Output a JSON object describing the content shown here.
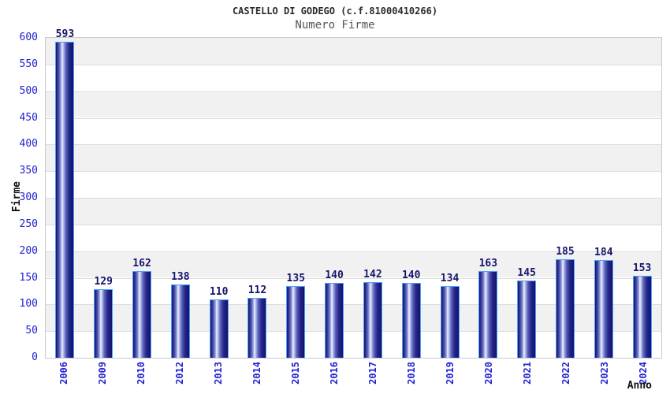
{
  "header": {
    "title": "CASTELLO DI GODEGO (c.f.81000410266)",
    "subtitle": "Numero Firme"
  },
  "chart_data": {
    "type": "bar",
    "title": "CASTELLO DI GODEGO (c.f.81000410266)",
    "subtitle": "Numero Firme",
    "categories": [
      "2006",
      "2009",
      "2010",
      "2012",
      "2013",
      "2014",
      "2015",
      "2016",
      "2017",
      "2018",
      "2019",
      "2020",
      "2021",
      "2022",
      "2023",
      "2024"
    ],
    "values": [
      593,
      129,
      162,
      138,
      110,
      112,
      135,
      140,
      142,
      140,
      134,
      163,
      145,
      185,
      184,
      153
    ],
    "xlabel": "Anno",
    "ylabel": "Firme",
    "ylim": [
      0,
      600
    ],
    "ytick_step": 50,
    "grid": true,
    "legend": "none",
    "colors": {
      "bar_dark": "#12126b",
      "bar_light": "#f2f5ff",
      "bar_border": "#4d9fff",
      "tick_label": "#2222d0",
      "value_label": "#16166b",
      "band_gray": "#f1f1f2",
      "band_white": "#ffffff",
      "gridline": "#dcdcdc",
      "plot_border": "#c9c9c9",
      "title_color": "#2b2b2b",
      "subtitle_color": "#555555",
      "axis_label_color": "#111111"
    }
  }
}
